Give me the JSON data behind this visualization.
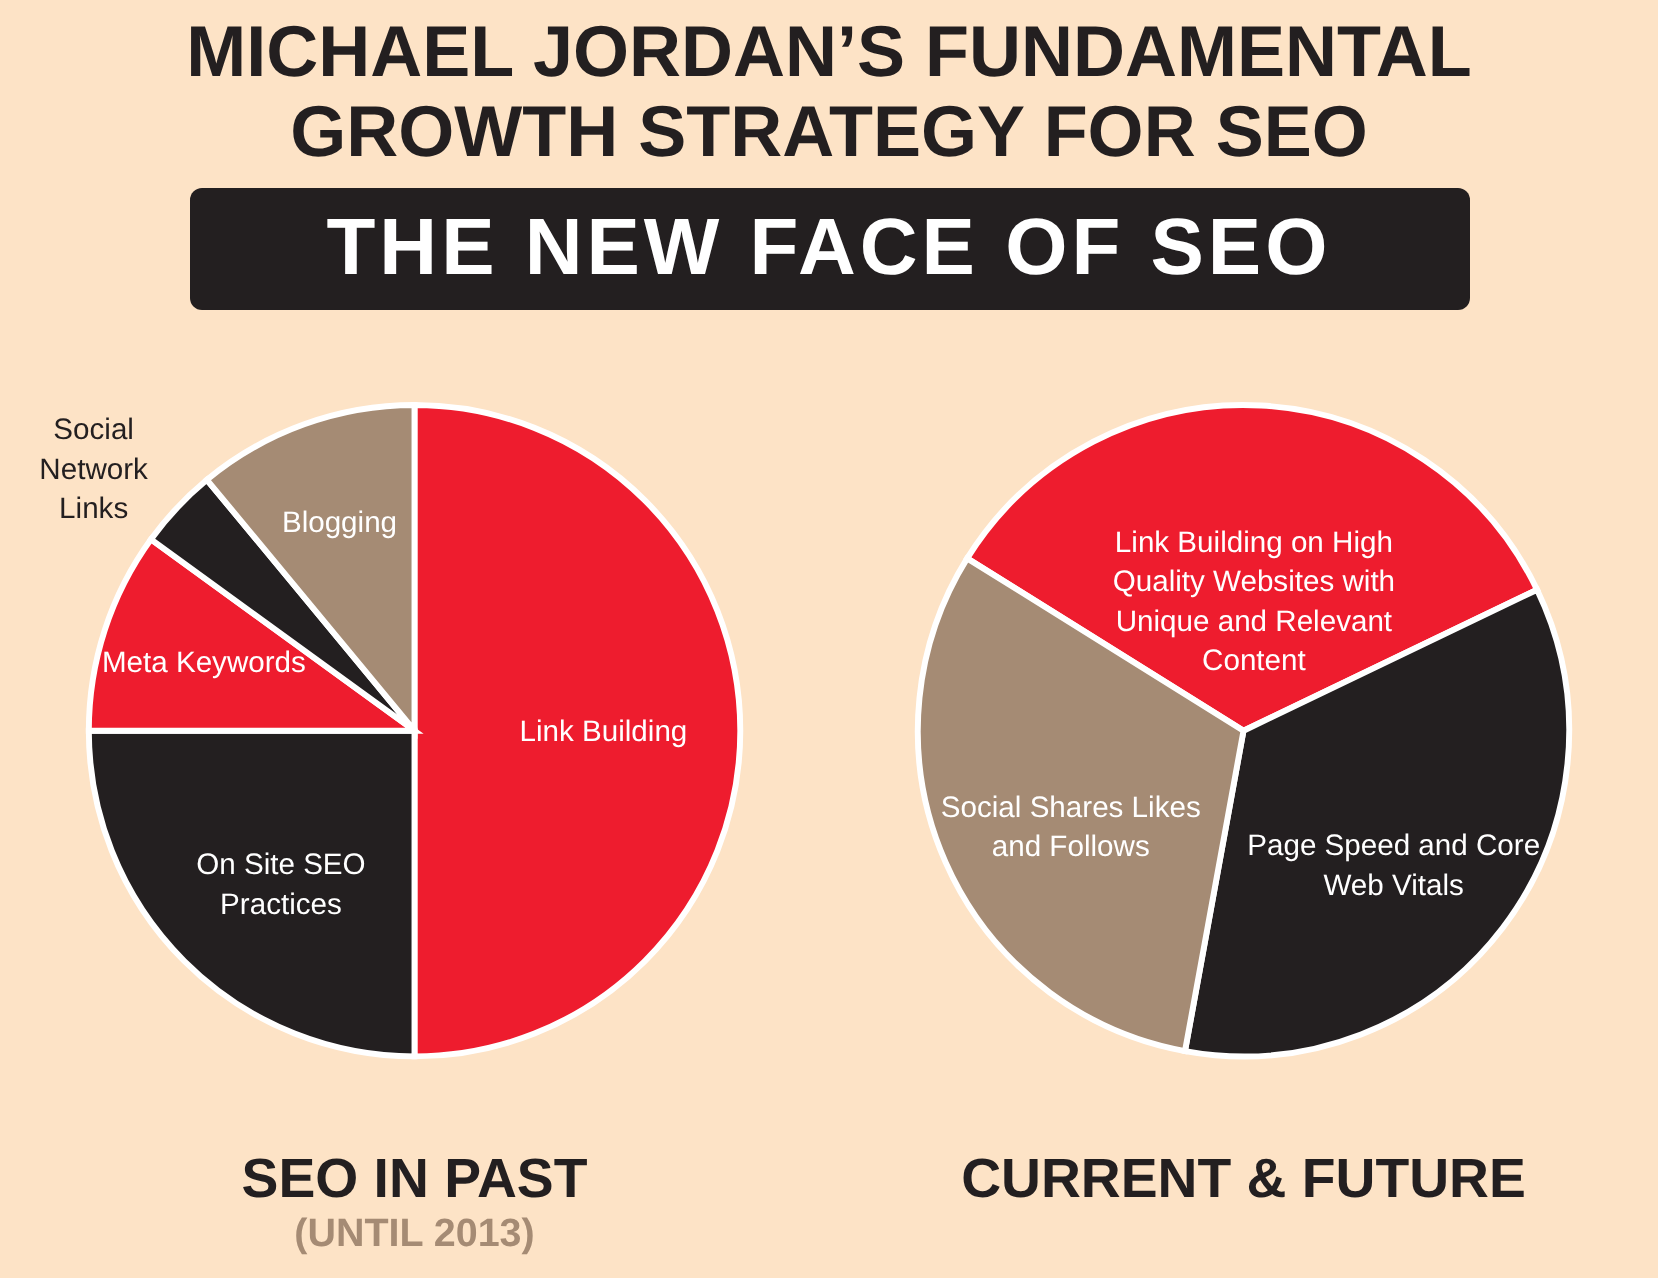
{
  "chart_data": [
    {
      "type": "pie",
      "title": "SEO IN PAST",
      "subtitle": "(UNTIL 2013)",
      "annotations": [
        "MICHAEL JORDAN’S FUNDAMENTAL GROWTH STRATEGY FOR SEO",
        "THE NEW FACE OF SEO"
      ],
      "categories": [
        "Link Building",
        "On Site SEO Practices",
        "Meta Keywords",
        "Social Network Links",
        "Blogging"
      ],
      "values": [
        50,
        25,
        10,
        4,
        11
      ],
      "colors": [
        "#ee1c2e",
        "#231f20",
        "#ee1c2e",
        "#231f20",
        "#a58b74"
      ],
      "legend": false
    },
    {
      "type": "pie",
      "title": "CURRENT & FUTURE",
      "categories": [
        "Link Building on High Quality Websites with Unique and Relevant Content",
        "Page Speed and Core Web Vitals",
        "Social Shares Likes and Follows"
      ],
      "values": [
        34,
        35,
        31
      ],
      "colors": [
        "#ee1c2e",
        "#231f20",
        "#a58b74"
      ],
      "legend": false
    }
  ]
}
